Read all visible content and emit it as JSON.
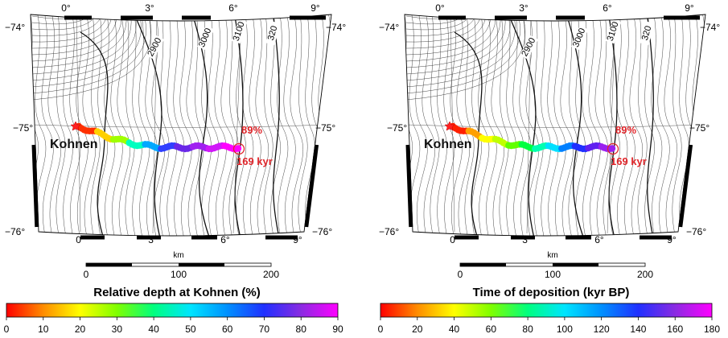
{
  "panels": [
    {
      "id": "depth",
      "colorbar_title": "Relative depth at Kohnen (%)",
      "colorbar_ticks": [
        "0",
        "10",
        "20",
        "30",
        "40",
        "50",
        "60",
        "70",
        "80",
        "90"
      ],
      "colorbar_colors": [
        "#ff0000",
        "#ff8c00",
        "#ffff00",
        "#7fff00",
        "#00ff7f",
        "#00e5ff",
        "#0090ff",
        "#2030ff",
        "#8a2be2",
        "#ff00ff"
      ],
      "path_colors": [
        "#ff3000",
        "#ffd000",
        "#a0ff00",
        "#00ffc0",
        "#00a8ff",
        "#3040ff",
        "#6a28e8",
        "#a020f0",
        "#d018f8",
        "#ff00ff"
      ],
      "station": "Kohnen",
      "end_pct": "89%",
      "end_age": "169 kyr"
    },
    {
      "id": "age",
      "colorbar_title": "Time of deposition (kyr BP)",
      "colorbar_ticks": [
        "0",
        "20",
        "40",
        "60",
        "80",
        "100",
        "120",
        "140",
        "160",
        "180"
      ],
      "colorbar_colors": [
        "#ff0000",
        "#ff8c00",
        "#ffff00",
        "#7fff00",
        "#00ff7f",
        "#00e5ff",
        "#0090ff",
        "#2030ff",
        "#8a2be2",
        "#ff00ff"
      ],
      "path_colors": [
        "#ff2000",
        "#ffa000",
        "#ffff00",
        "#c0ff00",
        "#60ff00",
        "#00ff40",
        "#00ffb0",
        "#00e0ff",
        "#0080ff",
        "#2030ff",
        "#6020f0",
        "#9a20f0"
      ],
      "station": "Kohnen",
      "end_pct": "89%",
      "end_age": "169 kyr"
    }
  ],
  "map": {
    "lon_top": [
      "0°",
      "3°",
      "6°",
      "9°"
    ],
    "lon_bottom": [
      "0°",
      "3°",
      "6°",
      "9°"
    ],
    "lat_left": [
      "−74°",
      "−75°",
      "−76°"
    ],
    "lat_right": [
      "−74°",
      "−75°",
      "−76°"
    ],
    "contour_labels": [
      "2900",
      "3000",
      "3100",
      "320"
    ]
  },
  "scalebar": {
    "unit": "km",
    "ticks": [
      "0",
      "100",
      "200"
    ]
  }
}
